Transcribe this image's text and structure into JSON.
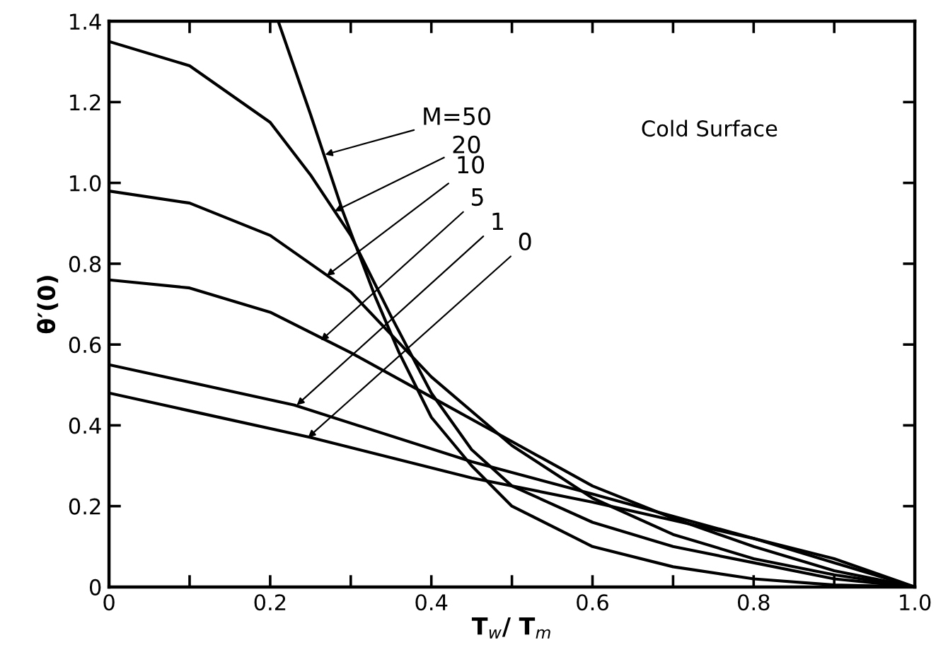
{
  "chart_data": {
    "type": "line",
    "xlabel": "T$_{w}$/ T$_{m}$",
    "ylabel": "θ′(0)",
    "xlim": [
      0,
      1
    ],
    "ylim": [
      0,
      1.4
    ],
    "xticks": [
      0,
      {
        "value": 0.1,
        "label": null
      },
      0.2,
      {
        "value": 0.3,
        "label": null
      },
      0.4,
      {
        "value": 0.5,
        "label": null
      },
      0.6,
      {
        "value": 0.7,
        "label": null
      },
      0.8,
      {
        "value": 0.9,
        "label": null
      },
      {
        "value": 1,
        "label": "1.0"
      }
    ],
    "yticks": [
      0,
      0.2,
      0.4,
      0.6,
      0.8,
      {
        "value": 1,
        "label": "1.0"
      },
      1.2,
      1.4
    ],
    "grid": false,
    "legend": false,
    "marker": "none",
    "line_style": "solid",
    "series": [
      {
        "color": "#000000",
        "x": [
          0.21,
          0.25,
          0.29,
          0.33,
          0.36,
          0.4,
          0.45,
          0.5,
          0.6,
          0.7,
          0.8,
          0.9,
          1.0
        ],
        "values": [
          1.4,
          1.17,
          0.93,
          0.72,
          0.58,
          0.42,
          0.3,
          0.2,
          0.1,
          0.05,
          0.02,
          0.005,
          0
        ]
      },
      {
        "color": "#000000",
        "x": [
          0,
          0.1,
          0.2,
          0.25,
          0.3,
          0.35,
          0.4,
          0.45,
          0.5,
          0.6,
          0.7,
          0.8,
          0.9,
          1.0
        ],
        "values": [
          1.35,
          1.29,
          1.15,
          1.02,
          0.87,
          0.67,
          0.48,
          0.34,
          0.25,
          0.16,
          0.1,
          0.06,
          0.02,
          0
        ]
      },
      {
        "color": "#000000",
        "x": [
          0,
          0.1,
          0.2,
          0.3,
          0.4,
          0.5,
          0.6,
          0.7,
          0.8,
          0.9,
          1.0
        ],
        "values": [
          0.98,
          0.95,
          0.87,
          0.73,
          0.52,
          0.35,
          0.22,
          0.13,
          0.07,
          0.03,
          0
        ]
      },
      {
        "color": "#000000",
        "x": [
          0,
          0.1,
          0.2,
          0.3,
          0.4,
          0.5,
          0.6,
          0.7,
          0.8,
          0.9,
          1.0
        ],
        "values": [
          0.76,
          0.74,
          0.68,
          0.58,
          0.47,
          0.36,
          0.25,
          0.17,
          0.1,
          0.04,
          0
        ]
      },
      {
        "color": "#000000",
        "x": [
          0,
          0.23,
          0.45,
          0.6,
          0.8,
          0.9,
          1.0
        ],
        "values": [
          0.55,
          0.45,
          0.31,
          0.23,
          0.12,
          0.06,
          0
        ]
      },
      {
        "color": "#000000",
        "x": [
          0,
          0.25,
          0.45,
          0.6,
          0.8,
          0.9,
          1.0
        ],
        "values": [
          0.48,
          0.37,
          0.27,
          0.21,
          0.12,
          0.07,
          0
        ]
      }
    ],
    "annotations": [
      {
        "text": "M=50",
        "x": 0.268,
        "y": 1.07
      },
      {
        "text": "20",
        "x": 0.28,
        "y": 0.93
      },
      {
        "text": "10",
        "x": 0.27,
        "y": 0.77
      },
      {
        "text": "5",
        "x": 0.263,
        "y": 0.61
      },
      {
        "text": "1",
        "x": 0.233,
        "y": 0.45
      },
      {
        "text": "0",
        "x": 0.247,
        "y": 0.37
      },
      "Cold Surface"
    ]
  }
}
